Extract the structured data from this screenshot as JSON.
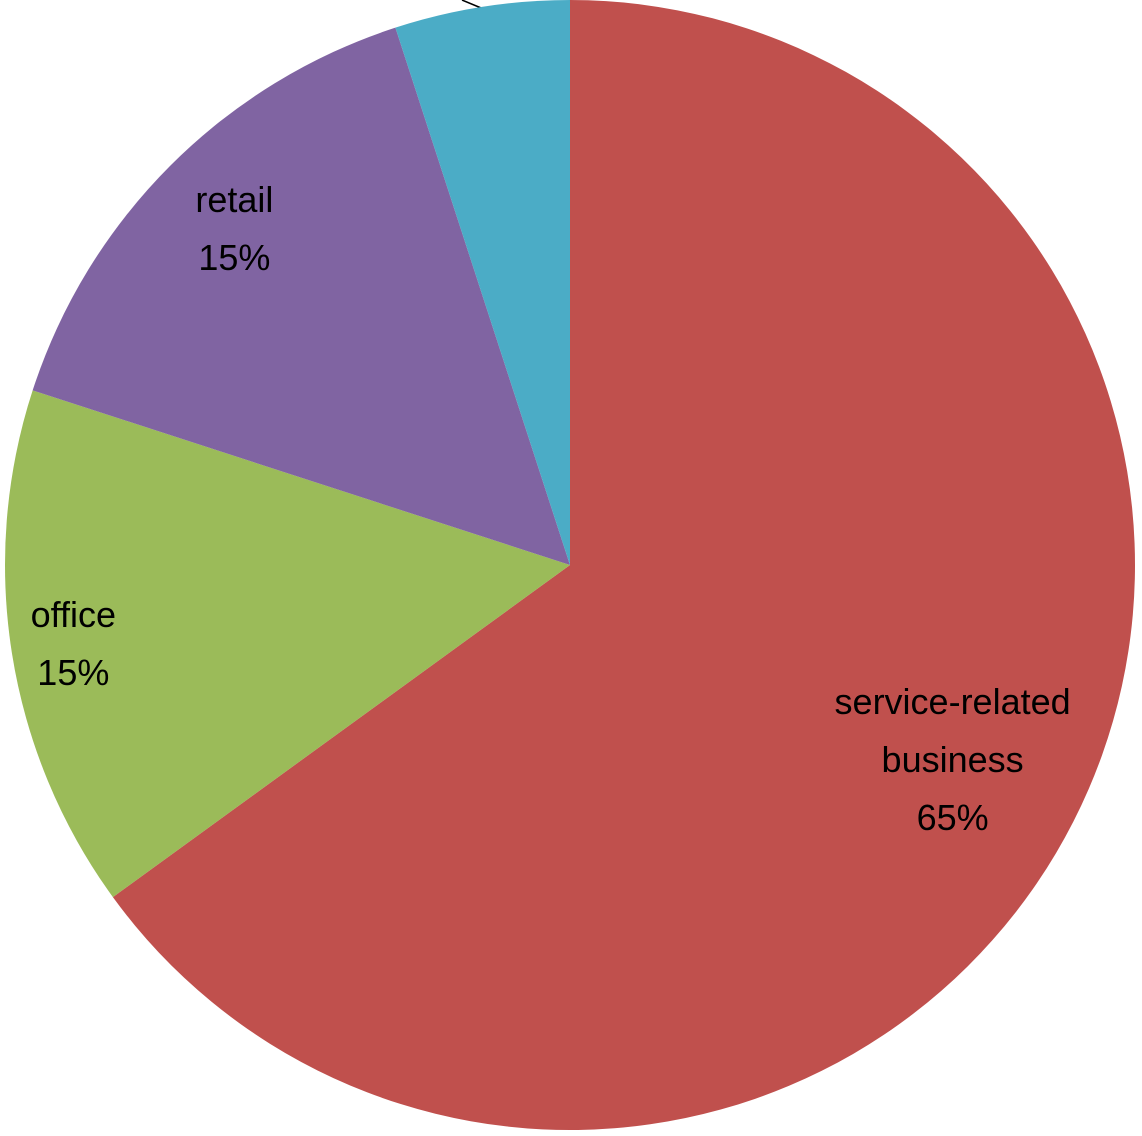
{
  "chart_data": {
    "type": "pie",
    "categories": [
      "service-related business",
      "office",
      "retail",
      null
    ],
    "values": [
      65,
      15,
      15,
      5
    ],
    "value_labels": [
      "65%",
      "15%",
      "15%",
      null
    ],
    "colors": [
      "#c0504d",
      "#9bbb59",
      "#8064a2",
      "#4bacc6"
    ]
  }
}
